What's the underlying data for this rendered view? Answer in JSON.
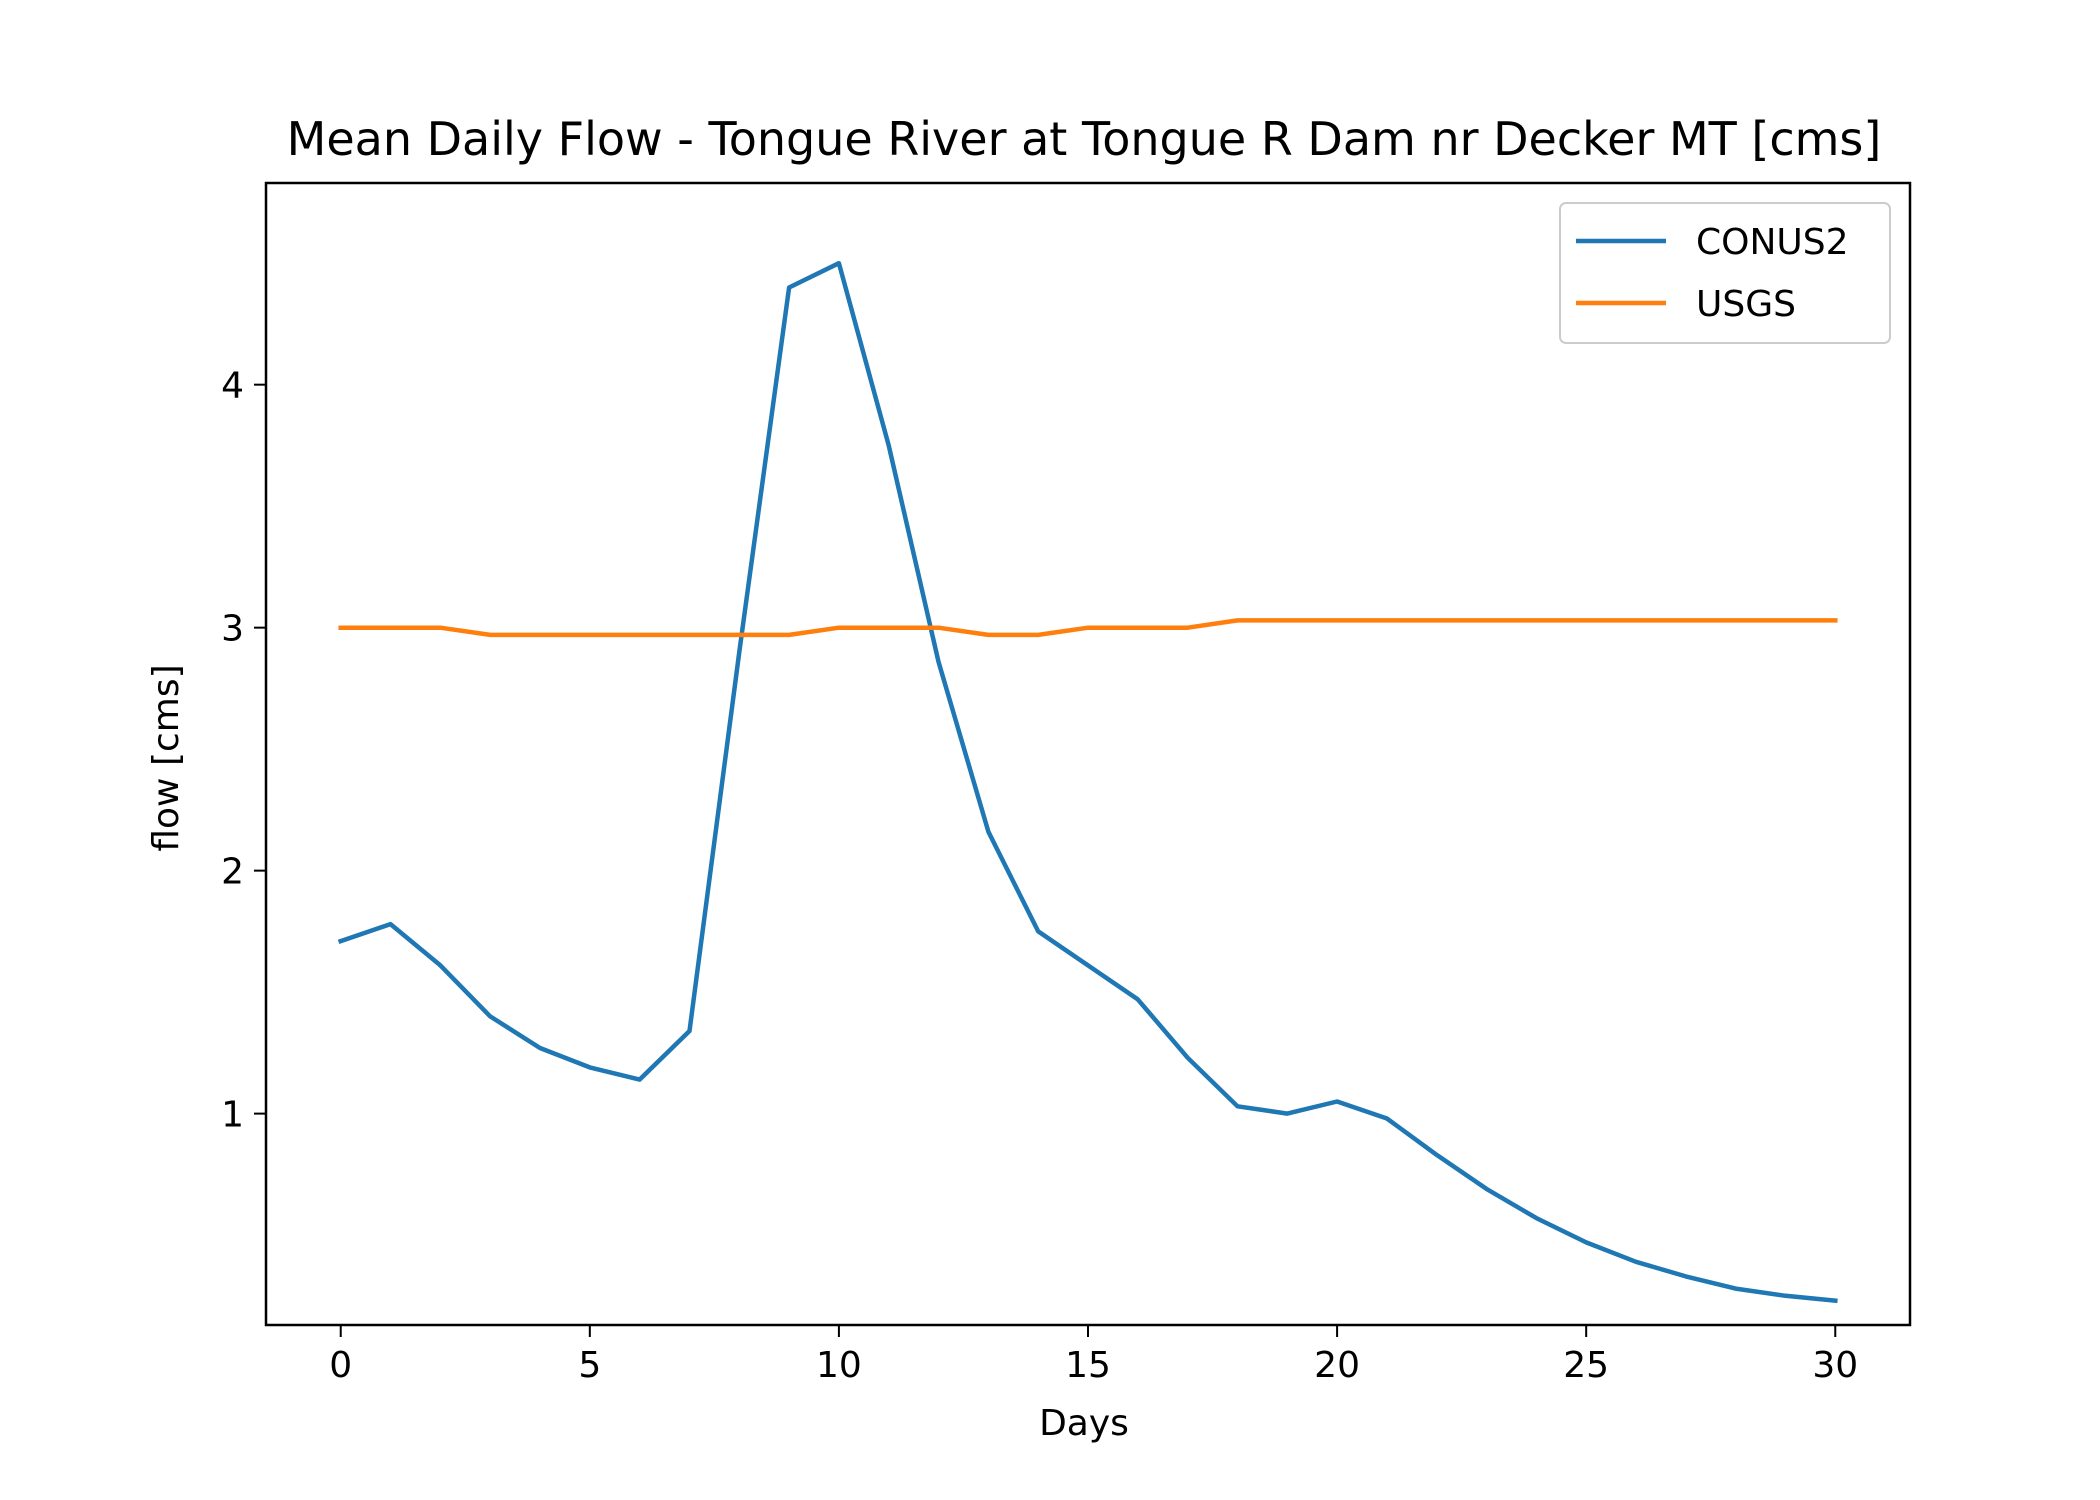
{
  "chart_data": {
    "type": "line",
    "title": "Mean Daily Flow - Tongue River at Tongue R Dam nr Decker MT [cms]",
    "xlabel": "Days",
    "ylabel": "flow [cms]",
    "xlim": [
      -1.5,
      31.5
    ],
    "ylim": [
      0.13,
      4.83
    ],
    "x_ticks": [
      0,
      5,
      10,
      15,
      20,
      25,
      30
    ],
    "y_ticks": [
      1,
      2,
      3,
      4
    ],
    "legend_position": "top-right",
    "grid": false,
    "x": [
      0,
      1,
      2,
      3,
      4,
      5,
      6,
      7,
      8,
      9,
      10,
      11,
      12,
      13,
      14,
      15,
      16,
      17,
      18,
      19,
      20,
      21,
      22,
      23,
      24,
      25,
      26,
      27,
      28,
      29,
      30
    ],
    "series": [
      {
        "name": "CONUS2",
        "color": "#1f77b4",
        "values": [
          1.71,
          1.78,
          1.61,
          1.4,
          1.27,
          1.19,
          1.14,
          1.34,
          2.9,
          4.4,
          4.5,
          3.75,
          2.86,
          2.16,
          1.75,
          1.61,
          1.47,
          1.23,
          1.03,
          1.0,
          1.05,
          0.98,
          0.83,
          0.69,
          0.57,
          0.47,
          0.39,
          0.33,
          0.28,
          0.25,
          0.23
        ]
      },
      {
        "name": "USGS",
        "color": "#ff7f0e",
        "values": [
          3.0,
          3.0,
          3.0,
          2.97,
          2.97,
          2.97,
          2.97,
          2.97,
          2.97,
          2.97,
          3.0,
          3.0,
          3.0,
          2.97,
          2.97,
          3.0,
          3.0,
          3.0,
          3.03,
          3.03,
          3.03,
          3.03,
          3.03,
          3.03,
          3.03,
          3.03,
          3.03,
          3.03,
          3.03,
          3.03,
          3.03
        ]
      }
    ]
  }
}
